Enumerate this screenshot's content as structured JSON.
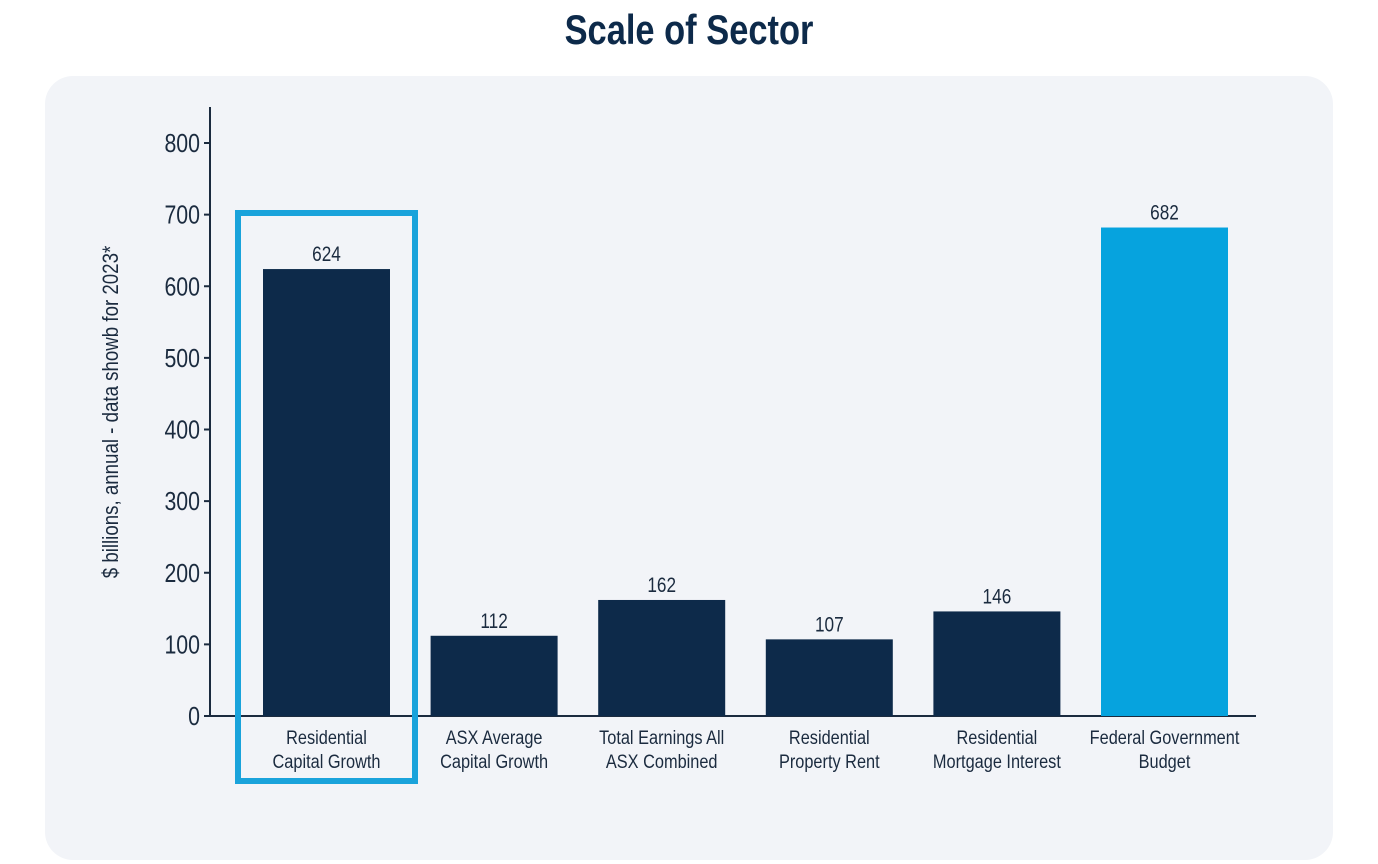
{
  "chart_data": {
    "type": "bar",
    "title": "Scale of Sector",
    "xlabel": "",
    "ylabel": "$ billions, annual - data showb for 2023*",
    "ylim": [
      0,
      850
    ],
    "yticks": [
      0,
      100,
      200,
      300,
      400,
      500,
      600,
      700,
      800
    ],
    "grid": false,
    "categories": [
      [
        "Residential",
        "Capital Growth"
      ],
      [
        "ASX Average",
        "Capital Growth"
      ],
      [
        "Total Earnings All",
        "ASX Combined"
      ],
      [
        "Residential",
        "Property Rent"
      ],
      [
        "Residential",
        "Mortgage Interest"
      ],
      [
        "Federal Government",
        "Budget"
      ]
    ],
    "values": [
      624,
      112,
      162,
      107,
      146,
      682
    ],
    "value_labels": [
      "624",
      "112",
      "162",
      "107",
      "146",
      "682"
    ],
    "bar_colors": [
      "#0D2A4A",
      "#0D2A4A",
      "#0D2A4A",
      "#0D2A4A",
      "#0D2A4A",
      "#06A3DE"
    ],
    "highlighted_category_index": 0,
    "highlight_color": "#1AA3DB",
    "axis_color": "#1B2B3F",
    "text_color": "#1B2B3F",
    "title_color": "#0D2A4A",
    "panel_color": "#F2F4F8"
  }
}
